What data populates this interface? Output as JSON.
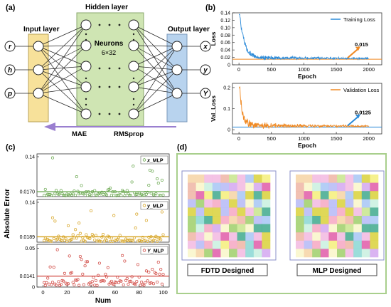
{
  "panel_labels": {
    "a": "(a)",
    "b": "(b)",
    "c": "(c)",
    "d": "(d)"
  },
  "network": {
    "input_title": "Input layer",
    "hidden_title": "Hidden layer",
    "output_title": "Output layer",
    "neurons_label": "Neurons",
    "neurons_size": "6×32",
    "inputs": [
      "r",
      "h",
      "p"
    ],
    "outputs": [
      "x",
      "y",
      "Y"
    ],
    "loss_label": "MAE",
    "optimizer_label": "RMSprop",
    "colors": {
      "input": "#f7e19a",
      "hidden": "#cfe5b3",
      "output": "#b8d3ee",
      "arrow": "#9a7fd0"
    }
  },
  "chart_data": [
    {
      "id": "training-loss",
      "type": "line",
      "xlabel": "Epoch",
      "ylabel": "Loss",
      "xlim": [
        -100,
        2200
      ],
      "ylim": [
        0,
        0.14
      ],
      "xticks": [
        0,
        500,
        1000,
        1500,
        2000
      ],
      "yticks": [
        0,
        0.02,
        0.04,
        0.06,
        0.08,
        0.1,
        0.12,
        0.14
      ],
      "ytick_labels": [
        "0",
        "0.02",
        "0.04",
        "0.06",
        "0.08",
        "0.10",
        "0.12",
        "0.14"
      ],
      "series": [
        {
          "name": "Training Loss",
          "color": "#2b8ad8"
        }
      ],
      "hline": {
        "y": 0.015,
        "color": "#f08a24"
      },
      "annotation": "0.015",
      "legend_position": "top-right"
    },
    {
      "id": "validation-loss",
      "type": "line",
      "xlabel": "Epoch",
      "ylabel": "Val_Loss",
      "xlim": [
        -100,
        2200
      ],
      "ylim": [
        -0.02,
        0.22
      ],
      "xticks": [
        0,
        500,
        1000,
        1500,
        2000
      ],
      "yticks": [
        0,
        0.1,
        0.2
      ],
      "ytick_labels": [
        "0",
        "0.1",
        "0.2"
      ],
      "series": [
        {
          "name": "Validation Loss",
          "color": "#f08a24"
        }
      ],
      "hline": {
        "y": 0.0125,
        "color": "#2b8ad8"
      },
      "annotation": "0.0125",
      "legend_position": "top-right"
    },
    {
      "id": "absolute-error",
      "type": "scatter",
      "xlabel": "Num",
      "ylabel": "Absolute Error",
      "xticks": [
        0,
        20,
        40,
        60,
        80,
        100
      ],
      "xlim": [
        -5,
        105
      ],
      "panels": [
        {
          "name": "x_MLP",
          "prefix": "x",
          "suffix": "_MLP",
          "color": "#6aa84f",
          "ylim": [
            0,
            0.15
          ],
          "ytick_labels": [
            "",
            "0.14"
          ],
          "ytick_values": [
            0,
            0.14
          ],
          "mean": 0.017,
          "mean_label": "0.0170",
          "seed": 11
        },
        {
          "name": "y_MLP",
          "prefix": "y",
          "suffix": "_MLP",
          "color": "#d6a21e",
          "ylim": [
            0,
            0.15
          ],
          "ytick_labels": [
            "",
            "0.14"
          ],
          "ytick_values": [
            0,
            0.14
          ],
          "mean": 0.0189,
          "mean_label": "0.0189",
          "seed": 23
        },
        {
          "name": "Y_MLP",
          "prefix": "Y",
          "suffix": "_MLP",
          "color": "#d0453f",
          "ylim": [
            0,
            0.055
          ],
          "ytick_labels": [
            "0",
            "0.05"
          ],
          "ytick_values": [
            0,
            0.05
          ],
          "mean": 0.0141,
          "mean_label": "0.0141",
          "seed": 37
        }
      ],
      "legend_position": "top-right"
    }
  ],
  "designs": {
    "left_label": "FDTD Designed",
    "right_label": "MLP Designed",
    "palette": [
      "#f4ee7a",
      "#f6a7c2",
      "#a7c6f5",
      "#c8e58c",
      "#f6d3a5",
      "#8ad7d3",
      "#d3a7f0",
      "#f9f6c9",
      "#f2b8e0",
      "#b5b9f6",
      "#d9d13a",
      "#eeb5a5",
      "#3fa98d",
      "#c9f0df",
      "#e05aa8",
      "#9fcf6a"
    ]
  }
}
